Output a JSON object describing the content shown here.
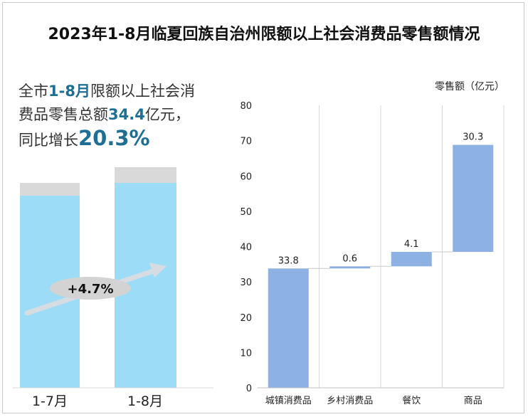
{
  "title": "2023年1-8月临夏回族自治州限额以上社会消费品零售额情况",
  "summary": {
    "line1_a": "全市",
    "period": "1-8月",
    "line1_b": "限额以上社会消",
    "line2_a": "费品零售总额",
    "total": "34.4",
    "line2_b": "亿元，",
    "line3_a": "同比增长",
    "growth": "20.3%"
  },
  "colors": {
    "accent": "#1f6f95",
    "waterfall_bar": "#8db1e2",
    "left_bar_fill": "#9ddcf7",
    "left_bar_cap": "#d9d9d9",
    "arrow": "#d6dde2",
    "ellipse": "#d3d3d3"
  },
  "left_chart": {
    "categories": [
      "1-7月",
      "1-8月"
    ],
    "arrow_label": "+4.7%"
  },
  "chart_data": {
    "type": "bar",
    "subtype": "waterfall",
    "title": "",
    "xlabel": "",
    "ylabel": "零售额（亿元）",
    "categories": [
      "城镇消费品",
      "乡村消费品",
      "餐饮",
      "商品"
    ],
    "values": [
      33.8,
      0.6,
      4.1,
      30.3
    ],
    "bases": [
      0,
      33.8,
      34.4,
      38.5
    ],
    "data_labels": [
      "33.8",
      "0.6",
      "4.1",
      "30.3"
    ],
    "ylim": [
      0,
      80
    ],
    "yticks": [
      0,
      10,
      20,
      30,
      40,
      50,
      60,
      70,
      80
    ],
    "grid": "vertical",
    "legend": "none"
  }
}
